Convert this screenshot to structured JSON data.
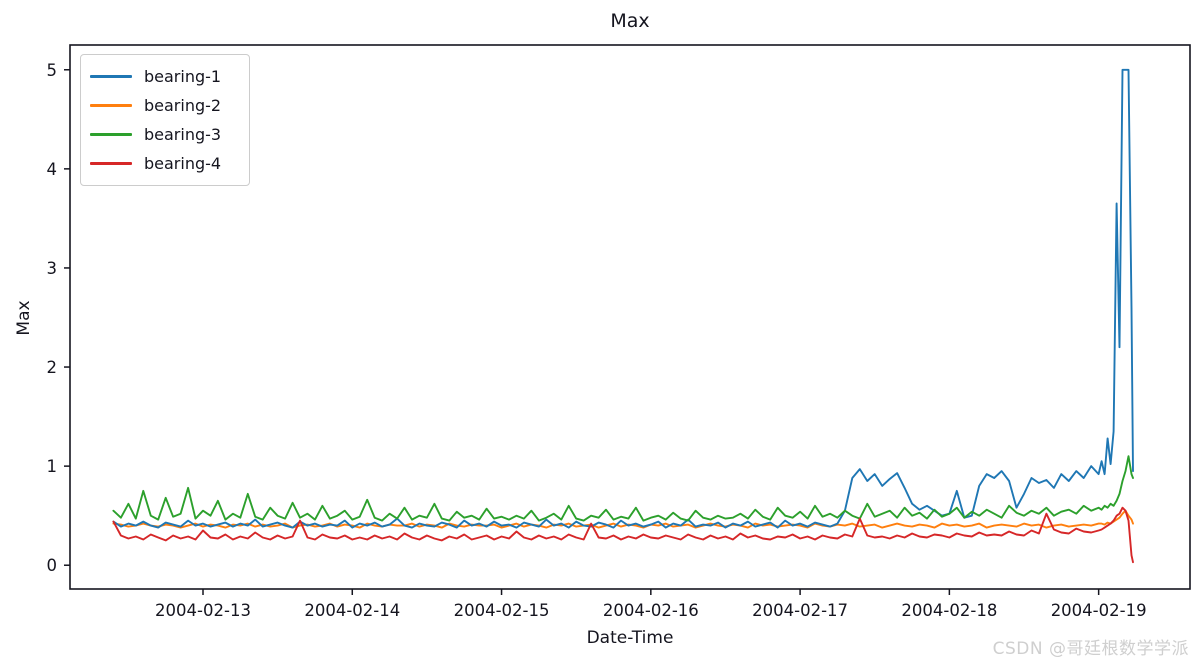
{
  "title": "Max",
  "watermark": "CSDN @哥廷根数学学派",
  "legend": {
    "items": [
      {
        "label": "bearing-1",
        "color": "#1f77b4"
      },
      {
        "label": "bearing-2",
        "color": "#ff7f0e"
      },
      {
        "label": "bearing-3",
        "color": "#2ca02c"
      },
      {
        "label": "bearing-4",
        "color": "#d62728"
      }
    ]
  },
  "chart_data": {
    "type": "line",
    "title": "Max",
    "xlabel": "Date-Time",
    "ylabel": "Max",
    "grid": false,
    "legend_position": "upper left",
    "x_axis_unit": "days since 2004-02-12 00:00",
    "xlim": [
      0.109,
      7.612
    ],
    "ylim": [
      -0.24,
      5.25
    ],
    "x_ticks": [
      {
        "t": 1,
        "label": "2004-02-13"
      },
      {
        "t": 2,
        "label": "2004-02-14"
      },
      {
        "t": 3,
        "label": "2004-02-15"
      },
      {
        "t": 4,
        "label": "2004-02-16"
      },
      {
        "t": 5,
        "label": "2004-02-17"
      },
      {
        "t": 6,
        "label": "2004-02-18"
      },
      {
        "t": 7,
        "label": "2004-02-19"
      }
    ],
    "y_ticks": [
      {
        "v": 0,
        "label": "0"
      },
      {
        "v": 1,
        "label": "1"
      },
      {
        "v": 2,
        "label": "2"
      },
      {
        "v": 3,
        "label": "3"
      },
      {
        "v": 4,
        "label": "4"
      },
      {
        "v": 5,
        "label": "5"
      }
    ],
    "x_spec": {
      "start": 0.4,
      "step": 0.05,
      "count": 133,
      "tail": [
        7.02,
        7.04,
        7.06,
        7.08,
        7.1,
        7.12,
        7.14,
        7.16,
        7.18,
        7.2,
        7.22,
        7.23
      ]
    },
    "series": [
      {
        "name": "bearing-2",
        "color": "#ff7f0e",
        "draw_order": 1,
        "values": [
          0.42,
          0.41,
          0.39,
          0.4,
          0.42,
          0.4,
          0.39,
          0.41,
          0.4,
          0.38,
          0.4,
          0.42,
          0.39,
          0.41,
          0.4,
          0.38,
          0.41,
          0.4,
          0.42,
          0.39,
          0.41,
          0.39,
          0.4,
          0.42,
          0.38,
          0.4,
          0.41,
          0.39,
          0.4,
          0.42,
          0.39,
          0.41,
          0.4,
          0.38,
          0.42,
          0.4,
          0.39,
          0.41,
          0.4,
          0.4,
          0.42,
          0.39,
          0.41,
          0.4,
          0.38,
          0.42,
          0.4,
          0.39,
          0.41,
          0.4,
          0.4,
          0.41,
          0.38,
          0.4,
          0.42,
          0.39,
          0.41,
          0.4,
          0.38,
          0.41,
          0.4,
          0.42,
          0.39,
          0.4,
          0.41,
          0.38,
          0.4,
          0.42,
          0.39,
          0.41,
          0.4,
          0.38,
          0.41,
          0.4,
          0.42,
          0.39,
          0.4,
          0.41,
          0.38,
          0.4,
          0.42,
          0.4,
          0.39,
          0.41,
          0.4,
          0.38,
          0.42,
          0.4,
          0.41,
          0.39,
          0.4,
          0.41,
          0.4,
          0.38,
          0.42,
          0.4,
          0.39,
          0.41,
          0.4,
          0.42,
          0.39,
          0.4,
          0.41,
          0.38,
          0.4,
          0.42,
          0.4,
          0.39,
          0.41,
          0.4,
          0.38,
          0.42,
          0.4,
          0.41,
          0.39,
          0.4,
          0.42,
          0.38,
          0.4,
          0.41,
          0.4,
          0.39,
          0.42,
          0.4,
          0.41,
          0.38,
          0.4,
          0.41,
          0.39,
          0.4,
          0.41,
          0.4,
          0.42,
          0.42,
          0.41,
          0.43,
          0.42,
          0.44,
          0.46,
          0.48,
          0.52,
          0.55,
          0.5,
          0.46,
          0.42
        ]
      },
      {
        "name": "bearing-1",
        "color": "#1f77b4",
        "draw_order": 2,
        "values": [
          0.44,
          0.39,
          0.42,
          0.4,
          0.44,
          0.4,
          0.38,
          0.43,
          0.41,
          0.39,
          0.45,
          0.4,
          0.42,
          0.39,
          0.41,
          0.43,
          0.39,
          0.42,
          0.4,
          0.46,
          0.39,
          0.41,
          0.43,
          0.4,
          0.38,
          0.44,
          0.4,
          0.42,
          0.39,
          0.41,
          0.4,
          0.45,
          0.38,
          0.42,
          0.4,
          0.43,
          0.39,
          0.41,
          0.47,
          0.4,
          0.38,
          0.42,
          0.4,
          0.39,
          0.43,
          0.41,
          0.38,
          0.45,
          0.4,
          0.42,
          0.39,
          0.44,
          0.4,
          0.41,
          0.38,
          0.43,
          0.41,
          0.39,
          0.46,
          0.4,
          0.42,
          0.38,
          0.44,
          0.4,
          0.39,
          0.43,
          0.41,
          0.38,
          0.45,
          0.4,
          0.42,
          0.39,
          0.41,
          0.44,
          0.38,
          0.42,
          0.4,
          0.46,
          0.39,
          0.41,
          0.4,
          0.43,
          0.38,
          0.42,
          0.4,
          0.44,
          0.39,
          0.41,
          0.43,
          0.38,
          0.45,
          0.4,
          0.42,
          0.39,
          0.43,
          0.41,
          0.39,
          0.42,
          0.55,
          0.88,
          0.97,
          0.85,
          0.92,
          0.8,
          0.87,
          0.93,
          0.78,
          0.62,
          0.56,
          0.6,
          0.55,
          0.5,
          0.52,
          0.75,
          0.48,
          0.5,
          0.8,
          0.92,
          0.88,
          0.95,
          0.85,
          0.58,
          0.72,
          0.88,
          0.83,
          0.86,
          0.78,
          0.92,
          0.85,
          0.95,
          0.88,
          1.0,
          0.92,
          1.05,
          0.92,
          1.28,
          1.02,
          1.35,
          3.65,
          2.2,
          5.0,
          5.0,
          5.0,
          2.6,
          0.95
        ]
      },
      {
        "name": "bearing-3",
        "color": "#2ca02c",
        "draw_order": 3,
        "values": [
          0.55,
          0.48,
          0.62,
          0.47,
          0.75,
          0.5,
          0.46,
          0.68,
          0.49,
          0.52,
          0.78,
          0.47,
          0.55,
          0.5,
          0.65,
          0.46,
          0.52,
          0.48,
          0.72,
          0.49,
          0.46,
          0.58,
          0.5,
          0.47,
          0.63,
          0.48,
          0.52,
          0.46,
          0.6,
          0.47,
          0.5,
          0.55,
          0.46,
          0.49,
          0.66,
          0.48,
          0.45,
          0.52,
          0.47,
          0.58,
          0.46,
          0.5,
          0.48,
          0.62,
          0.47,
          0.45,
          0.54,
          0.48,
          0.5,
          0.46,
          0.57,
          0.47,
          0.49,
          0.46,
          0.5,
          0.47,
          0.55,
          0.45,
          0.48,
          0.52,
          0.46,
          0.6,
          0.47,
          0.45,
          0.5,
          0.48,
          0.56,
          0.46,
          0.49,
          0.47,
          0.58,
          0.45,
          0.48,
          0.5,
          0.46,
          0.53,
          0.47,
          0.45,
          0.55,
          0.48,
          0.46,
          0.5,
          0.47,
          0.48,
          0.52,
          0.47,
          0.56,
          0.49,
          0.46,
          0.58,
          0.5,
          0.48,
          0.54,
          0.47,
          0.6,
          0.49,
          0.52,
          0.48,
          0.55,
          0.5,
          0.47,
          0.62,
          0.49,
          0.52,
          0.55,
          0.48,
          0.58,
          0.5,
          0.53,
          0.47,
          0.56,
          0.49,
          0.52,
          0.58,
          0.48,
          0.54,
          0.5,
          0.56,
          0.52,
          0.48,
          0.6,
          0.53,
          0.5,
          0.55,
          0.52,
          0.58,
          0.5,
          0.54,
          0.56,
          0.52,
          0.6,
          0.55,
          0.58,
          0.56,
          0.6,
          0.58,
          0.62,
          0.6,
          0.65,
          0.72,
          0.85,
          0.95,
          1.1,
          0.92,
          0.88
        ]
      },
      {
        "name": "bearing-4",
        "color": "#d62728",
        "draw_order": 4,
        "values": [
          0.44,
          0.3,
          0.27,
          0.29,
          0.26,
          0.31,
          0.28,
          0.25,
          0.3,
          0.27,
          0.29,
          0.26,
          0.35,
          0.28,
          0.27,
          0.31,
          0.26,
          0.29,
          0.27,
          0.33,
          0.28,
          0.26,
          0.3,
          0.27,
          0.29,
          0.45,
          0.28,
          0.26,
          0.31,
          0.28,
          0.27,
          0.3,
          0.26,
          0.28,
          0.26,
          0.3,
          0.27,
          0.29,
          0.26,
          0.32,
          0.28,
          0.26,
          0.3,
          0.27,
          0.25,
          0.29,
          0.27,
          0.31,
          0.26,
          0.28,
          0.3,
          0.26,
          0.29,
          0.27,
          0.34,
          0.28,
          0.26,
          0.3,
          0.27,
          0.29,
          0.26,
          0.31,
          0.28,
          0.26,
          0.42,
          0.28,
          0.27,
          0.3,
          0.26,
          0.29,
          0.27,
          0.31,
          0.28,
          0.27,
          0.3,
          0.28,
          0.26,
          0.31,
          0.28,
          0.26,
          0.3,
          0.27,
          0.29,
          0.26,
          0.32,
          0.28,
          0.3,
          0.27,
          0.26,
          0.29,
          0.28,
          0.31,
          0.27,
          0.29,
          0.26,
          0.3,
          0.28,
          0.27,
          0.31,
          0.29,
          0.47,
          0.3,
          0.28,
          0.29,
          0.27,
          0.3,
          0.28,
          0.32,
          0.29,
          0.28,
          0.31,
          0.3,
          0.28,
          0.32,
          0.3,
          0.29,
          0.33,
          0.3,
          0.31,
          0.3,
          0.34,
          0.31,
          0.3,
          0.35,
          0.32,
          0.52,
          0.36,
          0.33,
          0.32,
          0.37,
          0.34,
          0.33,
          0.35,
          0.36,
          0.38,
          0.4,
          0.42,
          0.45,
          0.5,
          0.52,
          0.58,
          0.55,
          0.45,
          0.1,
          0.03
        ]
      }
    ]
  }
}
